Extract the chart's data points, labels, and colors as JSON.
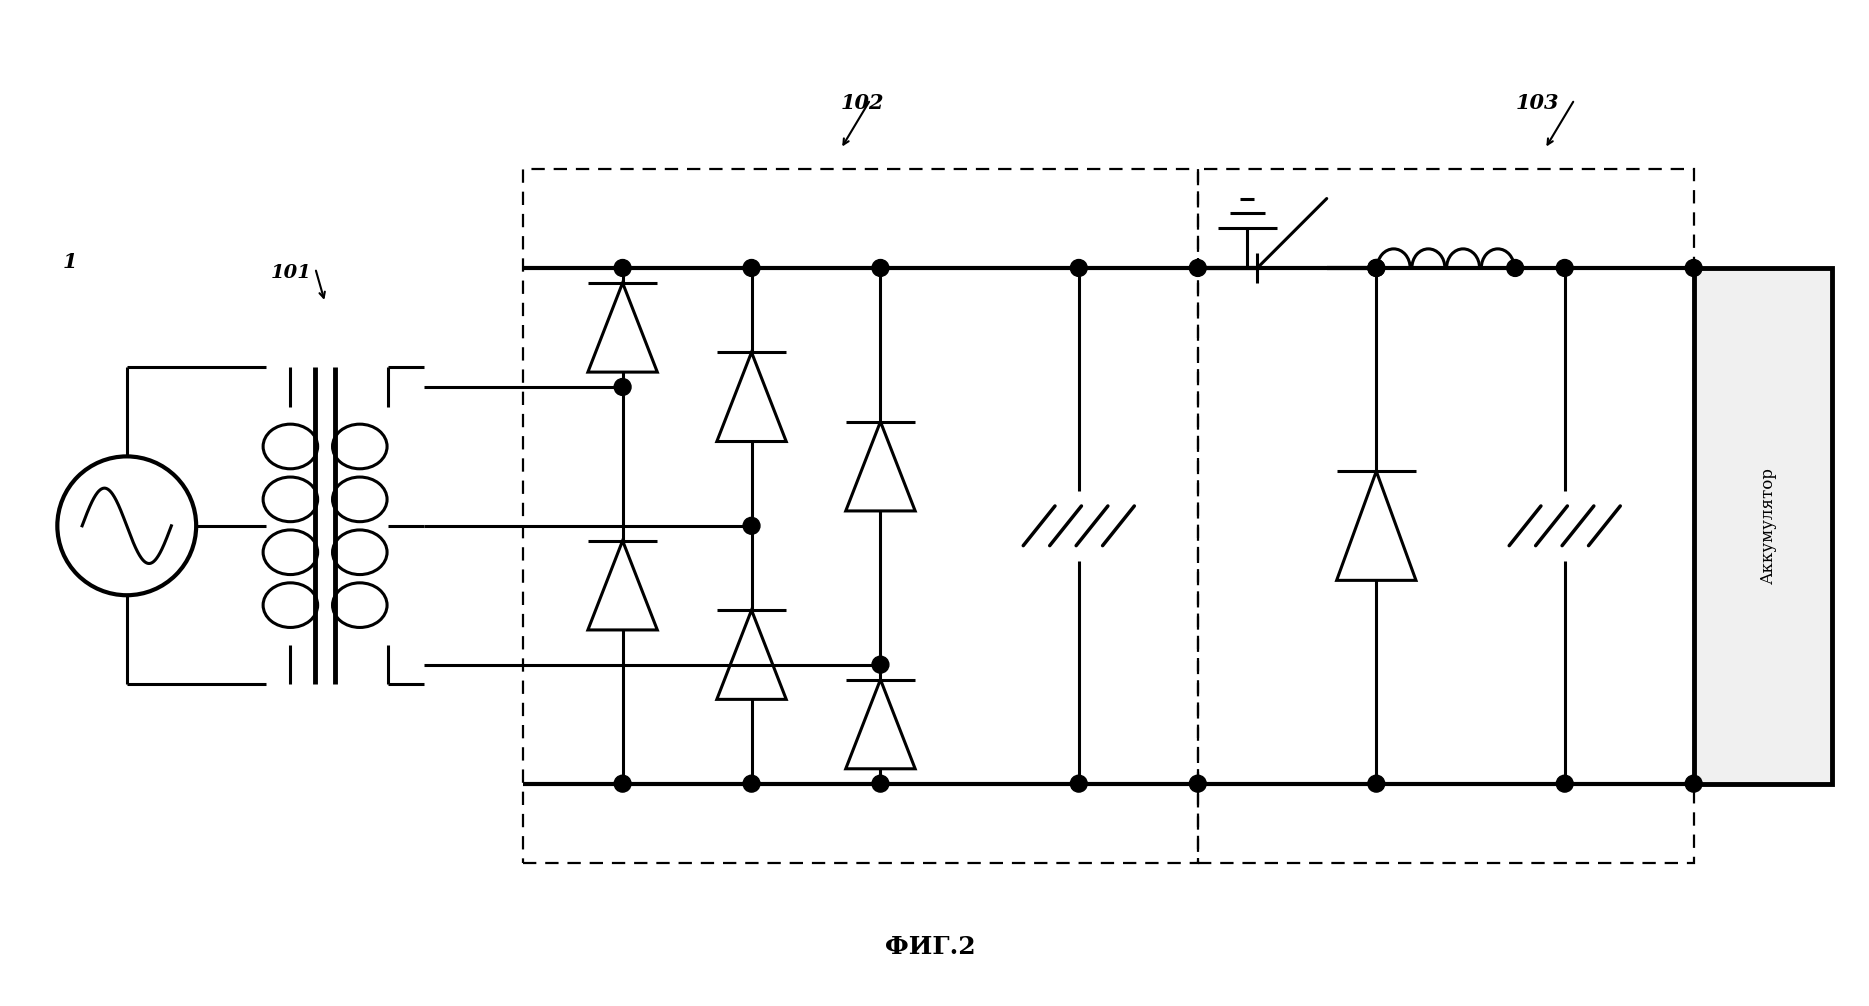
{
  "bg_color": "#ffffff",
  "line_color": "#000000",
  "lw": 2.2,
  "lw_thick": 3.0,
  "title": "ФИГ.2",
  "label_1": "1",
  "label_101": "101",
  "label_102": "102",
  "label_103": "103",
  "akk_label": "Аккумулятор",
  "fig_width": 18.69,
  "fig_height": 10.06
}
